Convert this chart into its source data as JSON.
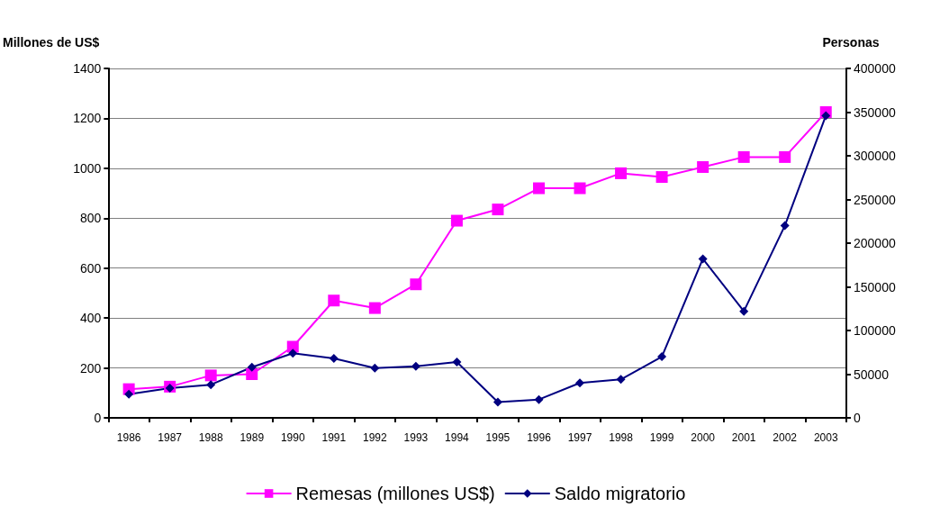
{
  "chart_data": {
    "type": "line",
    "ylabel": "Millones de US$",
    "y2label": "Personas",
    "categories": [
      "1986",
      "1987",
      "1988",
      "1989",
      "1990",
      "1991",
      "1992",
      "1993",
      "1994",
      "1995",
      "1996",
      "1997",
      "1998",
      "1999",
      "2000",
      "2001",
      "2002",
      "2003"
    ],
    "series": [
      {
        "name": "Remesas (millones US$)",
        "color": "#ff00ff",
        "marker": "square",
        "values": [
          115,
          125,
          170,
          175,
          285,
          470,
          440,
          535,
          790,
          835,
          920,
          920,
          980,
          965,
          1005,
          1045,
          1045,
          1225
        ]
      },
      {
        "name": "Saldo migratorio",
        "color": "#000080",
        "marker": "diamond",
        "axis": "y2",
        "values": [
          27000,
          34000,
          38000,
          58000,
          74000,
          68000,
          57000,
          59000,
          64000,
          18000,
          21000,
          40000,
          44000,
          70000,
          182000,
          122000,
          220000,
          346000
        ]
      }
    ],
    "ylim": [
      0,
      1400
    ],
    "yticks": [
      0,
      200,
      400,
      600,
      800,
      1000,
      1200,
      1400
    ],
    "y2lim": [
      0,
      400000
    ],
    "y2ticks": [
      0,
      50000,
      100000,
      150000,
      200000,
      250000,
      300000,
      350000,
      400000
    ],
    "grid": "y",
    "legend": "bottom",
    "line_style": "solid"
  }
}
